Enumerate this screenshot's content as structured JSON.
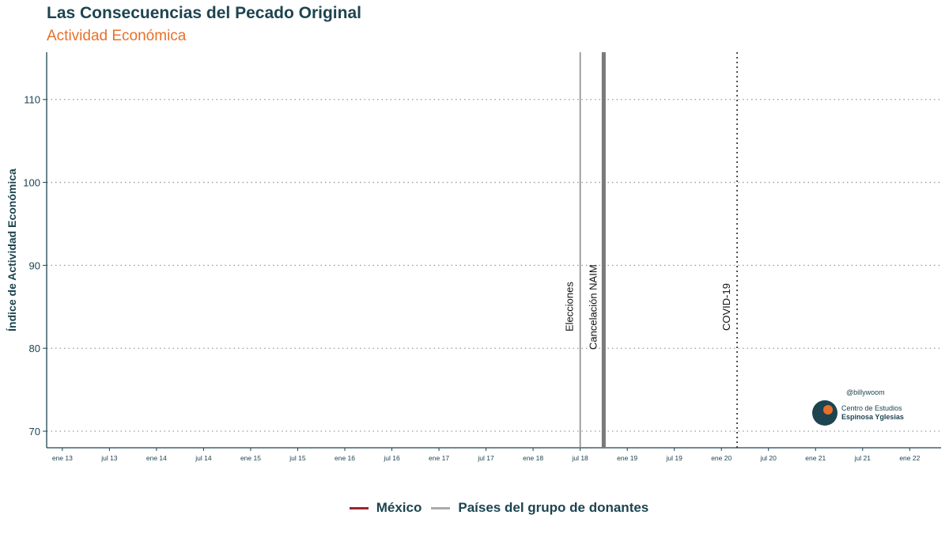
{
  "title": "Las Consecuencias del Pecado Original",
  "subtitle": "Actividad Económica",
  "credit": "@billywoom",
  "logo": {
    "line1": "Centro de Estudios",
    "line2": "Espinosa Yglesias",
    "icon": "ceey-logo"
  },
  "colors": {
    "title": "#1d4450",
    "subtitle": "#e8702a",
    "mexico": "#a0222a",
    "donantes": "#aaaaaa",
    "event": "#777777"
  },
  "chart_data": {
    "type": "line",
    "title": "Las Consecuencias del Pecado Original",
    "subtitle": "Actividad Económica",
    "xlabel": "",
    "ylabel": "Índice de Actividad Económica",
    "ylim": [
      68,
      115.7
    ],
    "yticks": [
      70,
      80,
      90,
      100,
      110
    ],
    "xlim": [
      "2012-11",
      "2022-05"
    ],
    "xticks": [
      {
        "date": "2013-01",
        "label": "ene 13"
      },
      {
        "date": "2013-07",
        "label": "jul 13"
      },
      {
        "date": "2014-01",
        "label": "ene 14"
      },
      {
        "date": "2014-07",
        "label": "jul 14"
      },
      {
        "date": "2015-01",
        "label": "ene 15"
      },
      {
        "date": "2015-07",
        "label": "jul 15"
      },
      {
        "date": "2016-01",
        "label": "ene 16"
      },
      {
        "date": "2016-07",
        "label": "jul 16"
      },
      {
        "date": "2017-01",
        "label": "ene 17"
      },
      {
        "date": "2017-07",
        "label": "jul 17"
      },
      {
        "date": "2018-01",
        "label": "ene 18"
      },
      {
        "date": "2018-07",
        "label": "jul 18"
      },
      {
        "date": "2019-01",
        "label": "ene 19"
      },
      {
        "date": "2019-07",
        "label": "jul 19"
      },
      {
        "date": "2020-01",
        "label": "ene 20"
      },
      {
        "date": "2020-07",
        "label": "jul 20"
      },
      {
        "date": "2021-01",
        "label": "ene 21"
      },
      {
        "date": "2021-07",
        "label": "jul 21"
      },
      {
        "date": "2022-01",
        "label": "ene 22"
      }
    ],
    "series": [
      {
        "name": "México",
        "values": []
      },
      {
        "name": "Países del grupo de donantes",
        "values": []
      }
    ],
    "events": [
      {
        "date": "2018-07",
        "label": "Elecciones",
        "style": "solid-thin"
      },
      {
        "date": "2018-10",
        "label": "Cancelación NAIM",
        "style": "solid-thick"
      },
      {
        "date": "2020-03",
        "label": "COVID-19",
        "style": "dotted"
      }
    ],
    "grid": "horizontal-dotted",
    "legend": "bottom"
  }
}
